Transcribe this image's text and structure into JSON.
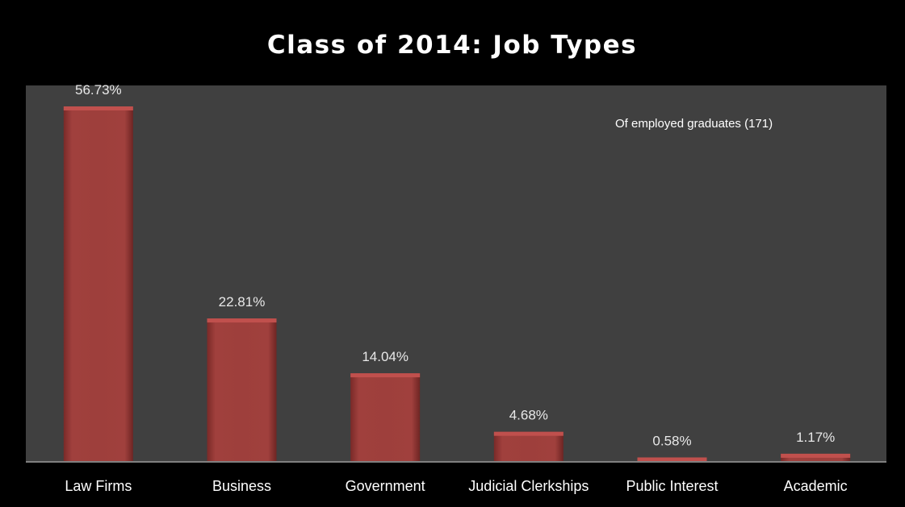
{
  "chart_data": {
    "type": "bar",
    "title": "Class of 2014: Job Types",
    "annotation": "Of employed graduates (171)",
    "categories": [
      "Law Firms",
      "Business",
      "Government",
      "Judicial Clerkships",
      "Public Interest",
      "Academic"
    ],
    "values": [
      56.73,
      22.81,
      14.04,
      4.68,
      0.58,
      1.17
    ],
    "data_labels": [
      "56.73%",
      "22.81%",
      "14.04%",
      "4.68%",
      "0.58%",
      "1.17%"
    ],
    "ylim": [
      0,
      60
    ],
    "grid": false,
    "legend": "none",
    "colors": {
      "page_background": "#000000",
      "plot_background": "#404040",
      "bar_fill": "#953735",
      "bar_highlight": "#c0504d",
      "axis_line": "#808080",
      "text": "#ffffff"
    }
  }
}
